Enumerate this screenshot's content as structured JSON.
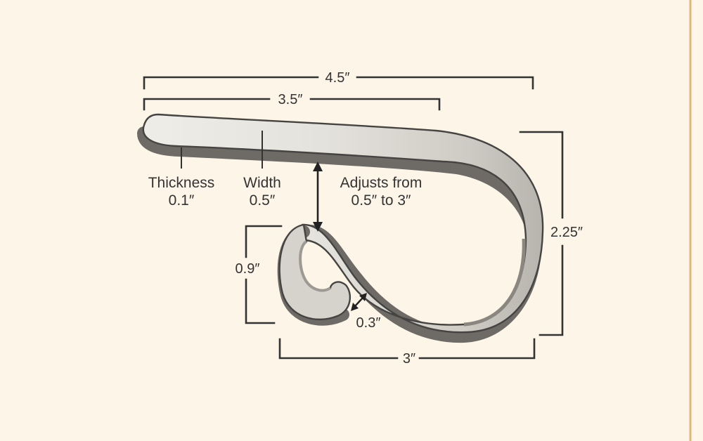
{
  "colors": {
    "background": "#fdf6e8",
    "border": "#e0b778",
    "ink": "#333333",
    "metal_light": "#e8e6e1",
    "metal_mid": "#c9c6bf",
    "metal_dark": "#8d8a84",
    "outline": "#4a4947"
  },
  "dimensions": {
    "overall_length": "4.5″",
    "inner_length": "3.5″",
    "height": "2.25″",
    "base_width": "3″",
    "curl_height": "0.9″",
    "curl_gap": "0.3″"
  },
  "labels": {
    "thickness_title": "Thickness",
    "thickness_value": "0.1″",
    "width_title": "Width",
    "width_value": "0.5″",
    "adjust_line1": "Adjusts from",
    "adjust_line2": "0.5″ to 3″"
  }
}
